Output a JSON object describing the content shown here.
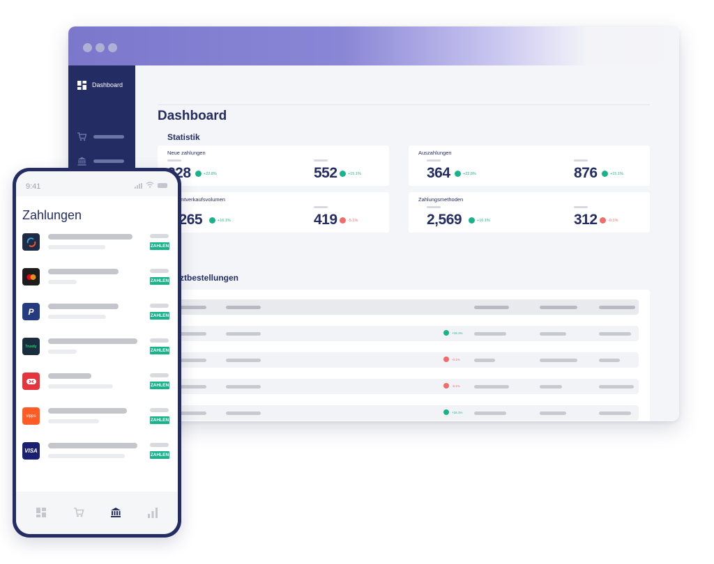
{
  "desktop": {
    "sidebar": {
      "items": [
        {
          "label": "Dashboard",
          "icon": "dashboard-icon",
          "active": true
        },
        {
          "label": "",
          "icon": "cart-icon"
        },
        {
          "label": "",
          "icon": "bank-icon"
        },
        {
          "label": "",
          "icon": "chart-icon"
        }
      ]
    },
    "page_title": "Dashboard",
    "stats_title": "Statistik",
    "stat_cards": [
      {
        "title": "Neue zahlungen",
        "metrics": [
          {
            "value": "228",
            "trend": "up",
            "pct": "+22.8%"
          },
          {
            "value": "552",
            "trend": "up",
            "pct": "+15.1%"
          }
        ]
      },
      {
        "title": "Auszahlungen",
        "metrics": [
          {
            "value": "364",
            "trend": "up",
            "pct": "+22.8%"
          },
          {
            "value": "876",
            "trend": "up",
            "pct": "+15.1%"
          }
        ]
      },
      {
        "title": "Gesamtverkaufsvolumen",
        "metrics": [
          {
            "value": "1,265",
            "trend": "up",
            "pct": "+16.1%"
          },
          {
            "value": "419",
            "trend": "down",
            "pct": "-5.1%"
          }
        ]
      },
      {
        "title": "Zahlungsmethoden",
        "metrics": [
          {
            "value": "2,569",
            "trend": "up",
            "pct": "+16.1%"
          },
          {
            "value": "312",
            "trend": "down",
            "pct": "-0.1%"
          }
        ]
      }
    ],
    "orders_title": "Letztbestellungen",
    "orders_rows": [
      {
        "trend": "",
        "pct": ""
      },
      {
        "trend": "up",
        "pct": "+16.1%"
      },
      {
        "trend": "down",
        "pct": "-0.1%"
      },
      {
        "trend": "down",
        "pct": "-5.1%"
      },
      {
        "trend": "up",
        "pct": "+16.1%"
      }
    ]
  },
  "phone": {
    "status_time": "9:41",
    "title": "Zahlungen",
    "action_label": "ZAHLEN",
    "payments": [
      {
        "brand": "swish-logo",
        "color": "#1f2a44",
        "text": "swish"
      },
      {
        "brand": "mastercard-logo",
        "color": "#1c1c1c",
        "text": ""
      },
      {
        "brand": "paypal-logo",
        "color": "#253b80",
        "text": "P"
      },
      {
        "brand": "trustly-logo",
        "color": "#1b2c3e",
        "text": "Trustly"
      },
      {
        "brand": "mobilepay-logo",
        "color": "#e4353e",
        "text": ""
      },
      {
        "brand": "vipps-logo",
        "color": "#ff5b24",
        "text": "vipps"
      },
      {
        "brand": "visa-logo",
        "color": "#1a1f71",
        "text": "VISA"
      }
    ],
    "tabs": [
      "dashboard-icon",
      "cart-icon",
      "bank-icon",
      "chart-icon"
    ]
  },
  "colors": {
    "navy": "#232c63",
    "accent_green": "#19b38b",
    "accent_red": "#f26b6b",
    "titlebar_purple": "#7b78cc"
  }
}
